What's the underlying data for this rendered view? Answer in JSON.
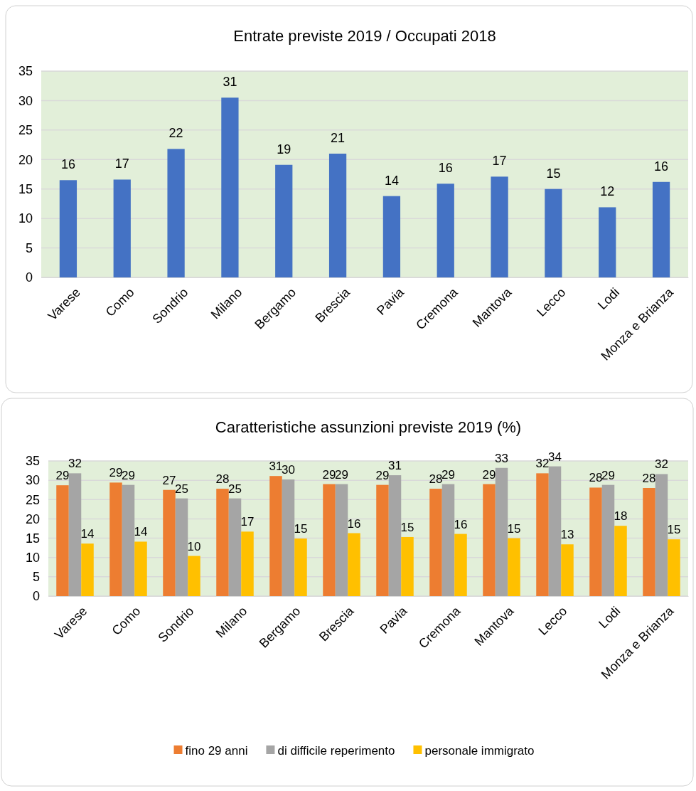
{
  "chart_data": [
    {
      "type": "bar",
      "title": "Entrate previste 2019  / Occupati 2018",
      "categories": [
        "Varese",
        "Como",
        "Sondrio",
        "Milano",
        "Bergamo",
        "Brescia",
        "Pavia",
        "Cremona",
        "Mantova",
        "Lecco",
        "Lodi",
        "Monza e Brianza"
      ],
      "series": [
        {
          "color": "#4472c4",
          "values": [
            16.5,
            16.6,
            21.8,
            30.5,
            19.1,
            21.0,
            13.8,
            15.9,
            17.1,
            15.0,
            11.9,
            16.2
          ],
          "value_labels": [
            "16",
            "17",
            "22",
            "31",
            "19",
            "21",
            "14",
            "16",
            "17",
            "15",
            "12",
            "16"
          ]
        }
      ],
      "ylim": [
        0,
        35
      ],
      "yticks": [
        0,
        5,
        10,
        15,
        20,
        25,
        30,
        35
      ],
      "grid": "y",
      "legend": false
    },
    {
      "type": "bar",
      "title": "Caratteristiche assunzioni previste 2019 (%)",
      "categories": [
        "Varese",
        "Como",
        "Sondrio",
        "Milano",
        "Bergamo",
        "Brescia",
        "Pavia",
        "Cremona",
        "Mantova",
        "Lecco",
        "Lodi",
        "Monza e Brianza"
      ],
      "series": [
        {
          "name": "fino 29 anni",
          "color": "#ed7d31",
          "values": [
            28.7,
            29.4,
            27.5,
            27.8,
            31.1,
            29.0,
            28.8,
            27.8,
            29.0,
            31.8,
            28.1,
            28.0
          ],
          "value_labels": [
            "29",
            "29",
            "27",
            "28",
            "31",
            "29",
            "29",
            "28",
            "29",
            "32",
            "28",
            "28"
          ]
        },
        {
          "name": "di difficile reperimento",
          "color": "#a5a5a5",
          "values": [
            31.8,
            28.8,
            25.3,
            25.3,
            30.2,
            29.0,
            31.3,
            29.0,
            33.2,
            33.6,
            28.8,
            31.6
          ],
          "value_labels": [
            "32",
            "29",
            "25",
            "25",
            "30",
            "29",
            "31",
            "29",
            "33",
            "34",
            "29",
            "32"
          ]
        },
        {
          "name": "personale immigrato",
          "color": "#ffc000",
          "values": [
            13.6,
            14.1,
            10.4,
            16.7,
            14.9,
            16.3,
            15.3,
            16.1,
            15.0,
            13.4,
            18.2,
            14.7
          ],
          "value_labels": [
            "14",
            "14",
            "10",
            "17",
            "15",
            "16",
            "15",
            "16",
            "15",
            "13",
            "18",
            "15"
          ]
        }
      ],
      "ylim": [
        0,
        35
      ],
      "yticks": [
        0,
        5,
        10,
        15,
        20,
        25,
        30,
        35
      ],
      "grid": "y",
      "legend": "bottom"
    }
  ]
}
